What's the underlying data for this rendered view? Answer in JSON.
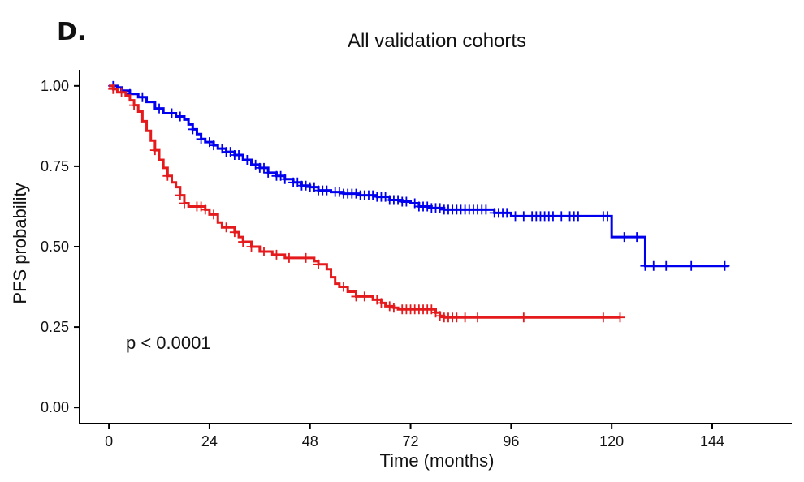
{
  "panel_label": "D.",
  "colors": {
    "high": "#e41a1c",
    "low": "#0000ee",
    "axis": "#000000"
  },
  "chart_data": {
    "type": "line",
    "subtype": "kaplan-meier step curve with censor marks",
    "title": "All validation cohorts",
    "xlabel": "Time (months)",
    "ylabel": "PFS probability",
    "xlim": [
      -7,
      163
    ],
    "ylim": [
      -0.05,
      1.05
    ],
    "xticks": [
      0,
      24,
      48,
      72,
      96,
      120,
      144
    ],
    "yticks": [
      0.0,
      0.25,
      0.5,
      0.75,
      1.0
    ],
    "ytick_labels": [
      "0.00",
      "0.25",
      "0.50",
      "0.75",
      "1.00"
    ],
    "annotation": "p < 0.0001",
    "grid": false,
    "legend": "none",
    "series": [
      {
        "color": "#0000ee",
        "steps": [
          [
            0,
            1.0
          ],
          [
            2,
            0.995
          ],
          [
            3,
            0.985
          ],
          [
            5,
            0.975
          ],
          [
            7,
            0.965
          ],
          [
            9,
            0.95
          ],
          [
            11,
            0.93
          ],
          [
            13,
            0.915
          ],
          [
            16,
            0.905
          ],
          [
            18,
            0.895
          ],
          [
            19,
            0.88
          ],
          [
            20,
            0.865
          ],
          [
            21,
            0.85
          ],
          [
            22,
            0.835
          ],
          [
            23,
            0.825
          ],
          [
            25,
            0.815
          ],
          [
            26,
            0.805
          ],
          [
            28,
            0.795
          ],
          [
            30,
            0.785
          ],
          [
            32,
            0.77
          ],
          [
            34,
            0.755
          ],
          [
            36,
            0.745
          ],
          [
            38,
            0.73
          ],
          [
            40,
            0.72
          ],
          [
            42,
            0.71
          ],
          [
            44,
            0.7
          ],
          [
            46,
            0.69
          ],
          [
            48,
            0.685
          ],
          [
            50,
            0.675
          ],
          [
            53,
            0.67
          ],
          [
            56,
            0.665
          ],
          [
            60,
            0.66
          ],
          [
            64,
            0.655
          ],
          [
            67,
            0.645
          ],
          [
            70,
            0.64
          ],
          [
            72,
            0.635
          ],
          [
            74,
            0.625
          ],
          [
            77,
            0.62
          ],
          [
            80,
            0.615
          ],
          [
            92,
            0.605
          ],
          [
            96,
            0.595
          ],
          [
            120,
            0.53
          ],
          [
            128,
            0.44
          ],
          [
            148,
            0.44
          ]
        ],
        "censor_x": [
          1,
          5,
          8,
          12,
          15,
          17,
          20,
          22,
          24,
          25,
          27,
          28,
          29,
          30,
          31,
          33,
          35,
          36,
          37,
          38,
          40,
          41,
          42,
          44,
          45,
          46,
          47,
          48,
          49,
          50,
          51,
          52,
          54,
          55,
          56,
          57,
          58,
          59,
          60,
          61,
          62,
          63,
          64,
          65,
          66,
          67,
          68,
          69,
          70,
          71,
          73,
          74,
          75,
          76,
          77,
          78,
          79,
          80,
          81,
          82,
          83,
          84,
          85,
          86,
          87,
          88,
          89,
          90,
          92,
          93,
          94,
          95,
          97,
          99,
          101,
          102,
          103,
          104,
          105,
          106,
          108,
          110,
          111,
          112,
          118,
          119,
          123,
          126,
          128,
          130,
          133,
          139,
          147
        ],
        "end_x": 148
      },
      {
        "color": "#e41a1c",
        "steps": [
          [
            0,
            1.0
          ],
          [
            1,
            0.99
          ],
          [
            2,
            0.98
          ],
          [
            4,
            0.97
          ],
          [
            5,
            0.955
          ],
          [
            6,
            0.94
          ],
          [
            7,
            0.92
          ],
          [
            8,
            0.89
          ],
          [
            9,
            0.86
          ],
          [
            10,
            0.83
          ],
          [
            11,
            0.8
          ],
          [
            12,
            0.77
          ],
          [
            13,
            0.745
          ],
          [
            14,
            0.72
          ],
          [
            15,
            0.7
          ],
          [
            16,
            0.685
          ],
          [
            17,
            0.66
          ],
          [
            18,
            0.635
          ],
          [
            19,
            0.625
          ],
          [
            23,
            0.615
          ],
          [
            24,
            0.6
          ],
          [
            26,
            0.575
          ],
          [
            27,
            0.56
          ],
          [
            30,
            0.545
          ],
          [
            31,
            0.53
          ],
          [
            32,
            0.515
          ],
          [
            34,
            0.5
          ],
          [
            36,
            0.485
          ],
          [
            39,
            0.475
          ],
          [
            42,
            0.465
          ],
          [
            49,
            0.455
          ],
          [
            50,
            0.445
          ],
          [
            52,
            0.43
          ],
          [
            53,
            0.405
          ],
          [
            54,
            0.385
          ],
          [
            55,
            0.375
          ],
          [
            57,
            0.36
          ],
          [
            59,
            0.345
          ],
          [
            63,
            0.335
          ],
          [
            65,
            0.325
          ],
          [
            66,
            0.315
          ],
          [
            68,
            0.31
          ],
          [
            69,
            0.305
          ],
          [
            78,
            0.295
          ],
          [
            79,
            0.285
          ],
          [
            80,
            0.28
          ],
          [
            122,
            0.28
          ]
        ],
        "censor_x": [
          1,
          3,
          6,
          11,
          14,
          17,
          18,
          21,
          22,
          23,
          25,
          28,
          30,
          32,
          34,
          37,
          40,
          43,
          47,
          50,
          56,
          59,
          61,
          64,
          65,
          67,
          68,
          70,
          71,
          72,
          73,
          74,
          75,
          76,
          77,
          78,
          79,
          80,
          81,
          82,
          83,
          85,
          88,
          99,
          118,
          122
        ],
        "end_x": 122
      }
    ]
  }
}
